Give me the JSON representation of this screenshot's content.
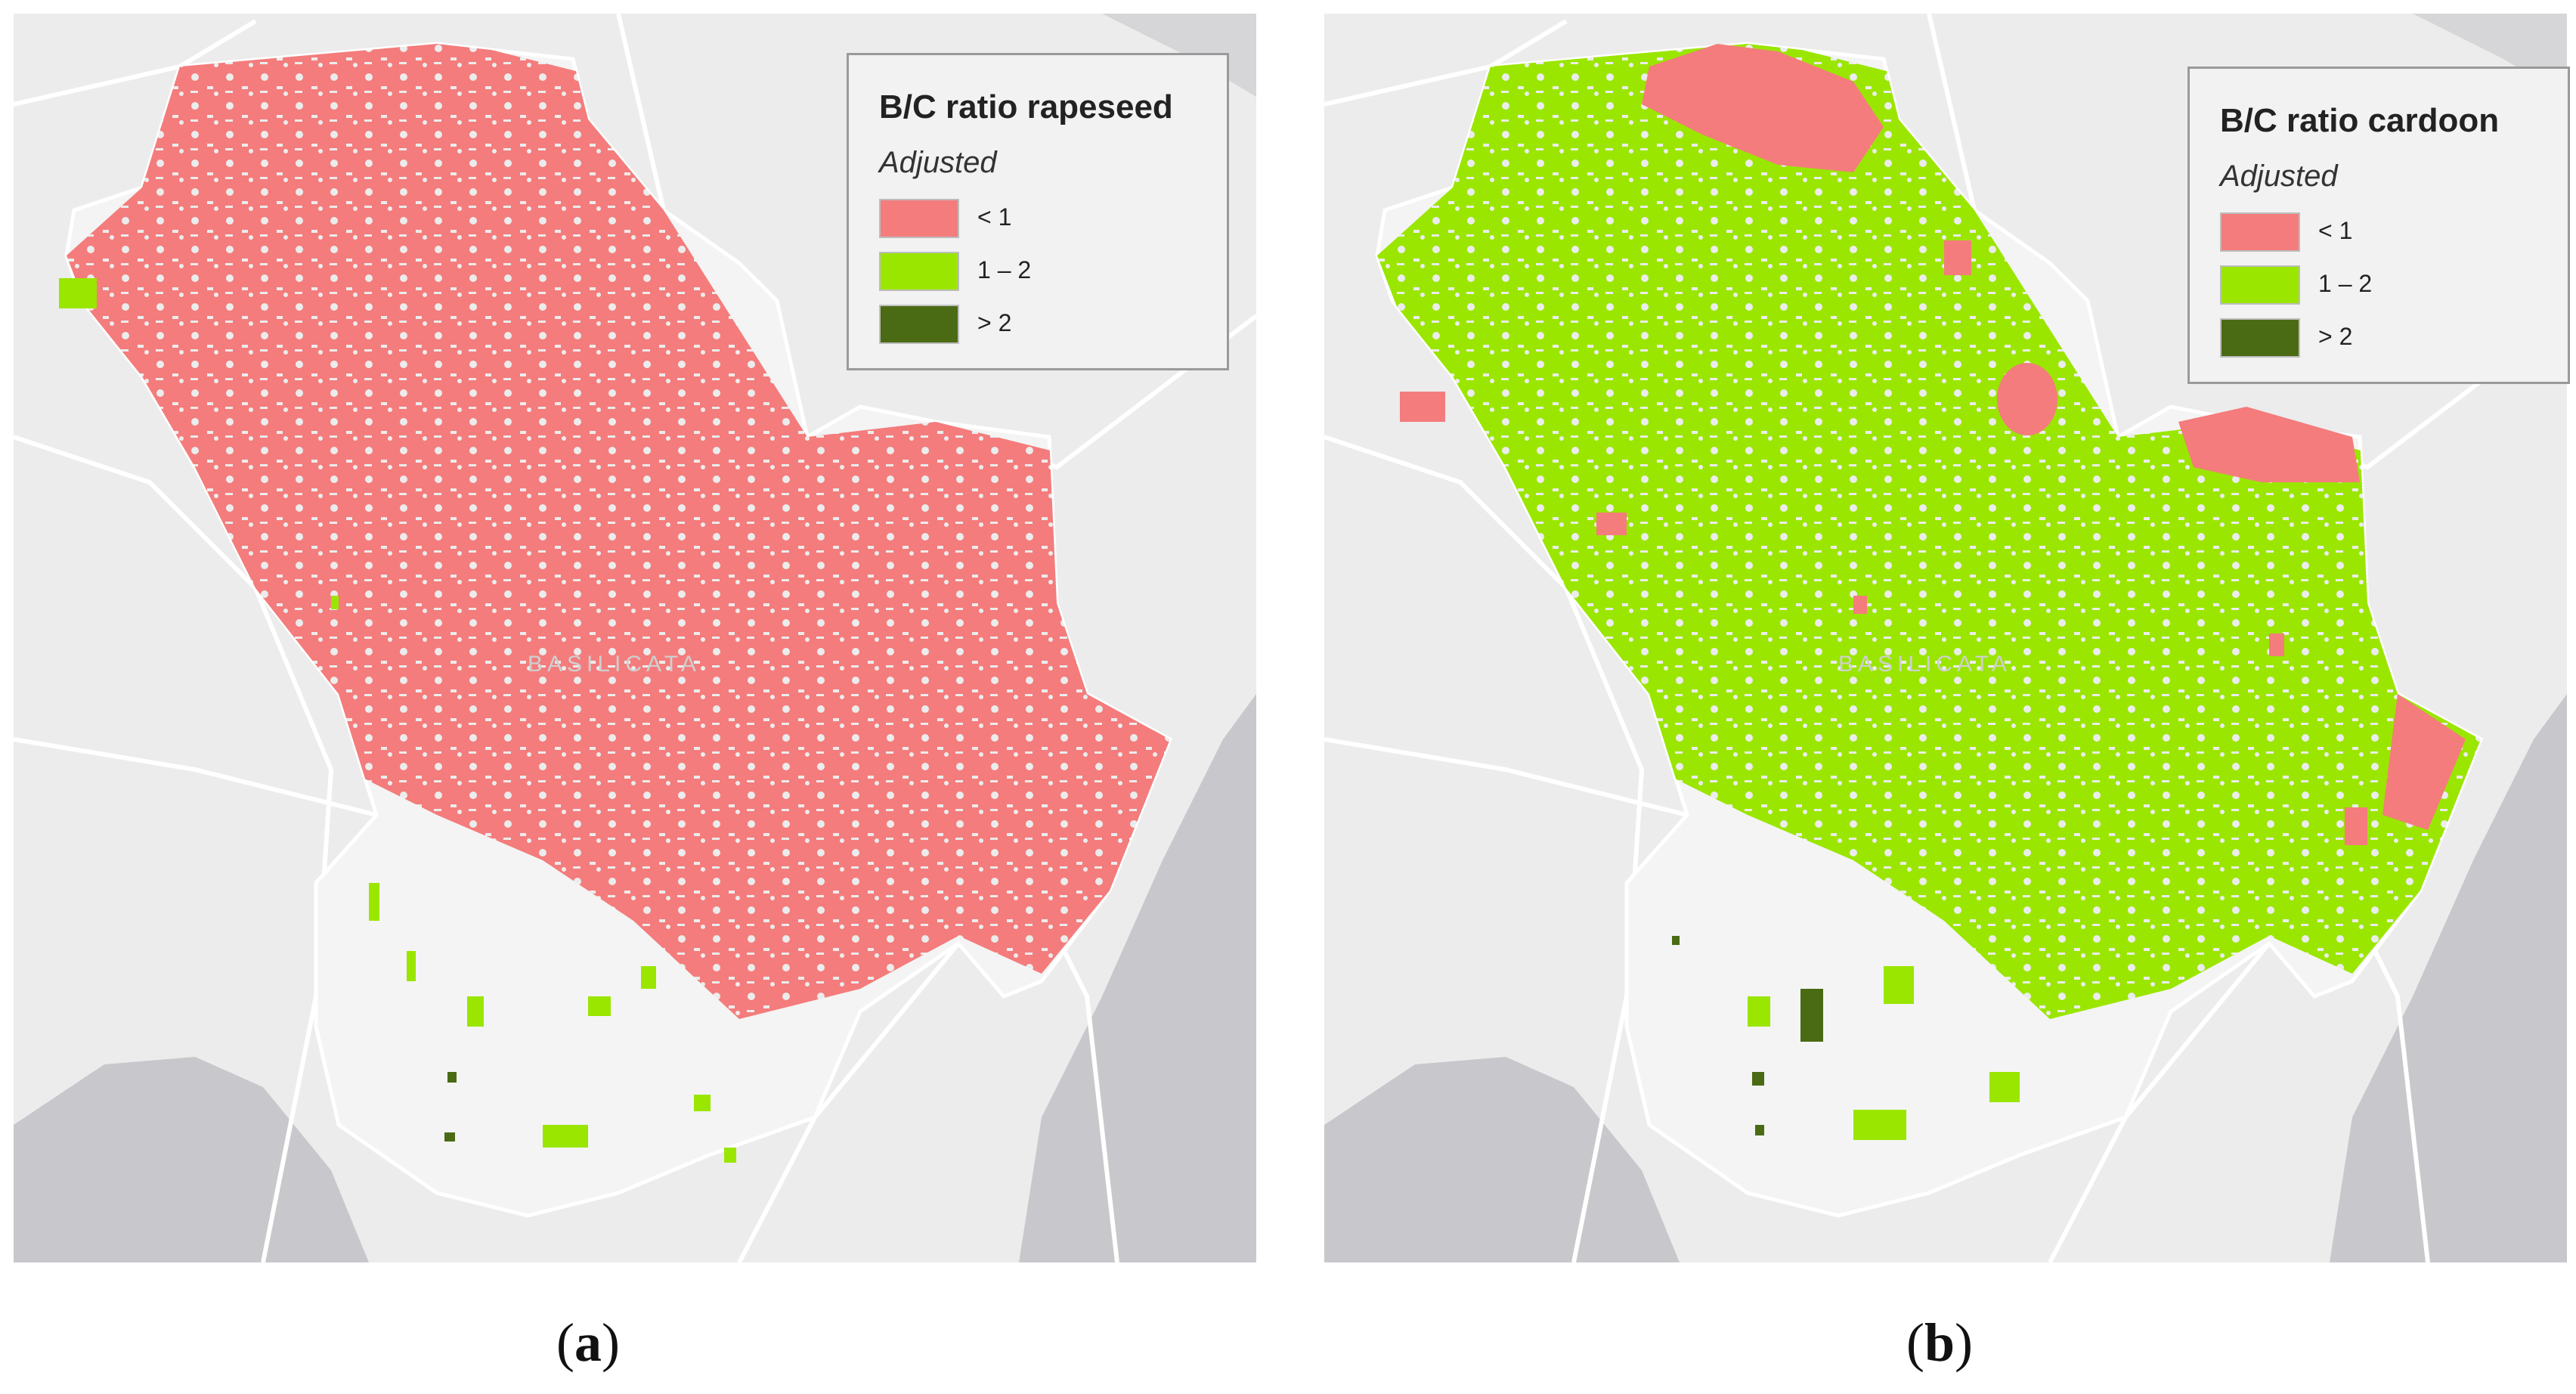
{
  "panels": [
    {
      "id": "a",
      "legend": {
        "title": "B/C ratio rapeseed",
        "subtitle": "Adjusted",
        "classes": [
          {
            "label": "< 1",
            "color": "#f47c7c"
          },
          {
            "label": "1 – 2",
            "color": "#9ae600"
          },
          {
            "label": "> 2",
            "color": "#4a6b14"
          }
        ]
      },
      "caption": {
        "open": "(",
        "letter": "a",
        "close": ")"
      },
      "dominant_class": "< 1"
    },
    {
      "id": "b",
      "legend": {
        "title": "B/C ratio cardoon",
        "subtitle": "Adjusted",
        "classes": [
          {
            "label": "< 1",
            "color": "#f47c7c"
          },
          {
            "label": "1 – 2",
            "color": "#9ae600"
          },
          {
            "label": "> 2",
            "color": "#4a6b14"
          }
        ]
      },
      "caption": {
        "open": "(",
        "letter": "b",
        "close": ")"
      },
      "dominant_class": "1 – 2"
    }
  ],
  "basemap": {
    "land": "#ececec",
    "sea": "#c8c8cc",
    "roads": "#ffffff",
    "region_label": "BASILICATA"
  }
}
